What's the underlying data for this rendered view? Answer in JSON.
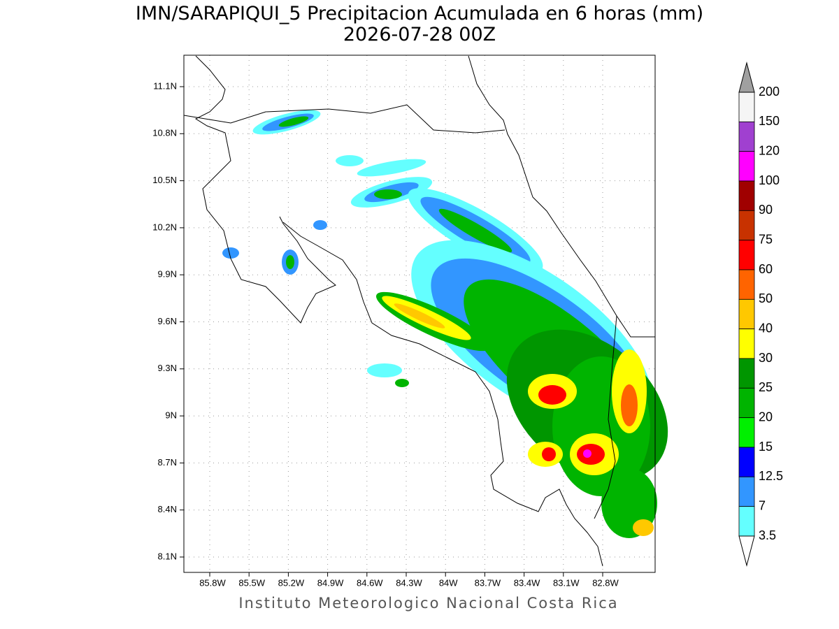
{
  "title": [
    "IMN/SARAPIQUI_5 Precipitacion Acumulada en 6 horas (mm)",
    "2026-07-28 00Z"
  ],
  "map": {
    "lat_labels": [
      "11.1N",
      "10.8N",
      "10.5N",
      "10.2N",
      "9.9N",
      "9.6N",
      "9.3N",
      "9N",
      "8.7N",
      "8.4N",
      "8.1N"
    ],
    "lon_labels": [
      "85.8W",
      "85.5W",
      "85.2W",
      "84.9W",
      "84.6W",
      "84.3W",
      "84W",
      "83.7W",
      "83.4W",
      "83.1W",
      "82.8W"
    ]
  },
  "colorbar": {
    "levels": [
      200,
      150,
      120,
      100,
      90,
      75,
      60,
      50,
      40,
      30,
      25,
      20,
      15,
      12.5,
      7,
      3.5
    ],
    "colors": [
      "#f5f5f5",
      "#a040d0",
      "#ff00ff",
      "#a00000",
      "#c83200",
      "#ff0000",
      "#ff6400",
      "#ffc800",
      "#ffff00",
      "#009600",
      "#00b400",
      "#00f000",
      "#0000ff",
      "#3296ff",
      "#64ffff"
    ],
    "over_color": "#a0a0a0",
    "under_color": "#ffffff"
  },
  "footer": "Instituto Meteorologico Nacional Costa Rica"
}
